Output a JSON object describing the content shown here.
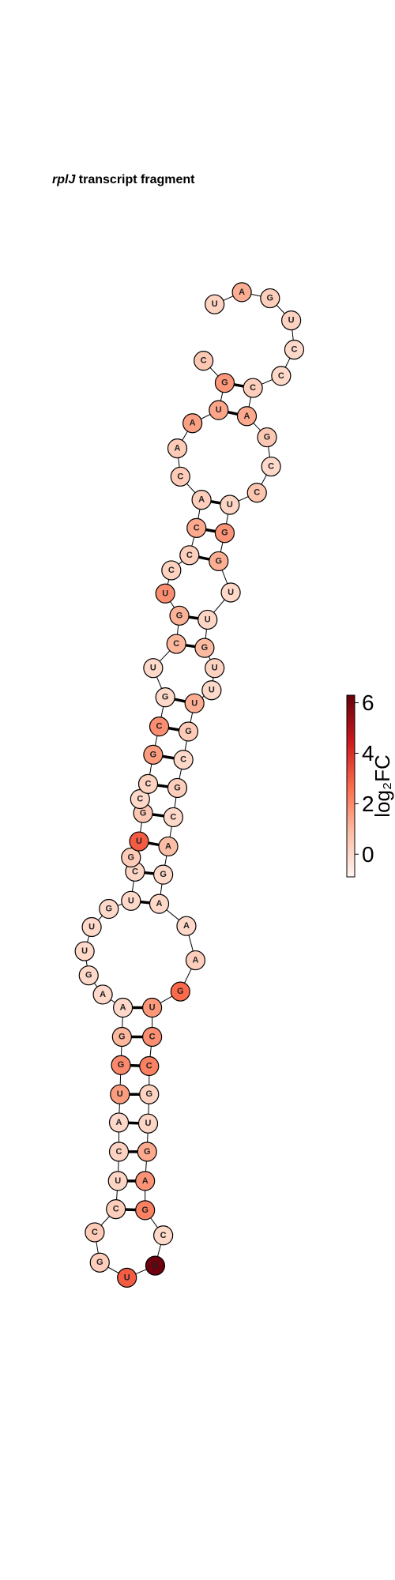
{
  "title": {
    "italic": "rplJ",
    "text": "transcript fragment"
  },
  "colorbar": {
    "label": "log₂FC",
    "lim": [
      -0.9,
      6.3
    ],
    "ticks": [
      0,
      2,
      4,
      6
    ]
  },
  "nodes": [
    {
      "label": "U",
      "value": 0.2
    },
    {
      "label": "A",
      "value": 1.2
    },
    {
      "label": "G",
      "value": 0.3
    },
    {
      "label": "U",
      "value": 0.2
    },
    {
      "label": "C",
      "value": 0
    },
    {
      "label": "C",
      "value": 0
    },
    {
      "label": "C",
      "value": 0.3
    },
    {
      "label": "A",
      "value": 1.3
    },
    {
      "label": "G",
      "value": 0.5
    },
    {
      "label": "C",
      "value": 0
    },
    {
      "label": "C",
      "value": 0.6
    },
    {
      "label": "U",
      "value": 0.1
    },
    {
      "label": "G",
      "value": 1.8
    },
    {
      "label": "G",
      "value": 1.2
    },
    {
      "label": "U",
      "value": 0
    },
    {
      "label": "U",
      "value": 0.1
    },
    {
      "label": "G",
      "value": 0.9
    },
    {
      "label": "U",
      "value": 0.2
    },
    {
      "label": "U",
      "value": 0
    },
    {
      "label": "U",
      "value": 1.2
    },
    {
      "label": "G",
      "value": 0.4
    },
    {
      "label": "C",
      "value": 0
    },
    {
      "label": "G",
      "value": 0.3
    },
    {
      "label": "C",
      "value": 0
    },
    {
      "label": "A",
      "value": 0.8
    },
    {
      "label": "G",
      "value": 0
    },
    {
      "label": "A",
      "value": 0
    },
    {
      "label": "A",
      "value": 0
    },
    {
      "label": "A",
      "value": 0.3
    },
    {
      "label": "G",
      "value": 2.7
    },
    {
      "label": "U",
      "value": 1.7
    },
    {
      "label": "C",
      "value": 1.9
    },
    {
      "label": "C",
      "value": 2.2
    },
    {
      "label": "G",
      "value": 0.2
    },
    {
      "label": "U",
      "value": 0.1
    },
    {
      "label": "G",
      "value": 1.3
    },
    {
      "label": "A",
      "value": 1.8
    },
    {
      "label": "G",
      "value": 2.2
    },
    {
      "label": "C",
      "value": 0
    },
    {
      "label": "U",
      "value": 6.2
    },
    {
      "label": "U",
      "value": 3.0
    },
    {
      "label": "G",
      "value": 0.3
    },
    {
      "label": "C",
      "value": 0.4
    },
    {
      "label": "C",
      "value": 0.3
    },
    {
      "label": "U",
      "value": 0.1
    },
    {
      "label": "C",
      "value": 0.2
    },
    {
      "label": "A",
      "value": 0
    },
    {
      "label": "U",
      "value": 1.6
    },
    {
      "label": "G",
      "value": 2.0
    },
    {
      "label": "G",
      "value": 1.0
    },
    {
      "label": "A",
      "value": 0
    },
    {
      "label": "A",
      "value": 0
    },
    {
      "label": "G",
      "value": 0
    },
    {
      "label": "U",
      "value": 0
    },
    {
      "label": "U",
      "value": 0
    },
    {
      "label": "G",
      "value": 0
    },
    {
      "label": "U",
      "value": 0
    },
    {
      "label": "C",
      "value": 0.1
    },
    {
      "label": "G",
      "value": 0.4
    },
    {
      "label": "U",
      "value": 3.0
    },
    {
      "label": "G",
      "value": 0.5
    },
    {
      "label": "C",
      "value": 0
    },
    {
      "label": "C",
      "value": 0.2
    },
    {
      "label": "G",
      "value": 1.6
    },
    {
      "label": "C",
      "value": 1.9
    },
    {
      "label": "G",
      "value": 0
    },
    {
      "label": "U",
      "value": 0
    },
    {
      "label": "C",
      "value": 1.0
    },
    {
      "label": "G",
      "value": 1.1
    },
    {
      "label": "U",
      "value": 1.9
    },
    {
      "label": "C",
      "value": 0.2
    },
    {
      "label": "C",
      "value": 0.3
    },
    {
      "label": "C",
      "value": 1.3
    },
    {
      "label": "A",
      "value": 0.3
    },
    {
      "label": "C",
      "value": 0.4
    },
    {
      "label": "A",
      "value": 0.4
    },
    {
      "label": "A",
      "value": 1.5
    },
    {
      "label": "U",
      "value": 1.4
    },
    {
      "label": "G",
      "value": 1.7
    },
    {
      "label": "C",
      "value": 0.5
    }
  ]
}
